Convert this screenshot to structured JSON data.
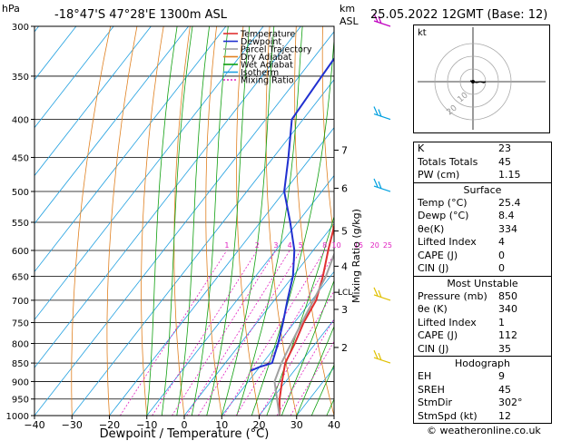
{
  "header": {
    "hpa_label": "hPa",
    "location": "-18°47'S  47°28'E  1300m  ASL",
    "km_label": "km",
    "asl_label": "ASL",
    "date": "25.05.2022  12GMT  (Base: 12)"
  },
  "chart_data": {
    "type": "line",
    "x_axis_title": "Dewpoint / Temperature (°C)",
    "y_axis_title": "hPa",
    "secondary_axis_title": "Mixing Ratio (g/kg)",
    "xlim": [
      -40,
      40
    ],
    "ylim": [
      1000,
      300
    ],
    "x_ticks": [
      -40,
      -30,
      -20,
      -10,
      0,
      10,
      20,
      30,
      40
    ],
    "x_tick_labels": [
      "−40",
      "−30",
      "−20",
      "−10",
      "0",
      "10",
      "20",
      "30",
      "40"
    ],
    "pressure_levels": [
      300,
      350,
      400,
      450,
      500,
      550,
      600,
      650,
      700,
      750,
      800,
      850,
      900,
      950,
      1000
    ],
    "km_ticks": [
      {
        "km": "7",
        "p": 440
      },
      {
        "km": "6",
        "p": 495
      },
      {
        "km": "5",
        "p": 565
      },
      {
        "km": "4",
        "p": 630
      },
      {
        "km": "3",
        "p": 720
      },
      {
        "km": "2",
        "p": 810
      }
    ],
    "lcl_label": "LCL",
    "lcl_pressure": 683,
    "mixing_ratio_labels": [
      "1",
      "2",
      "3",
      "4",
      "5",
      "8",
      "10",
      "15",
      "20",
      "25"
    ],
    "mixing_ratio_values": [
      1,
      2,
      3,
      4,
      5,
      8,
      10,
      15,
      20,
      25
    ],
    "legend": [
      {
        "name": "Temperature",
        "color": "#e03030"
      },
      {
        "name": "Dewpoint",
        "color": "#2030d0"
      },
      {
        "name": "Parcel Trajectory",
        "color": "#a0a0a0"
      },
      {
        "name": "Dry Adiabat",
        "color": "#e08020"
      },
      {
        "name": "Wet Adiabat",
        "color": "#10a010"
      },
      {
        "name": "Isotherm",
        "color": "#20a0e0"
      },
      {
        "name": "Mixing Ratio",
        "color": "#e020c0"
      }
    ],
    "series": [
      {
        "name": "Temperature",
        "color": "#e03030",
        "points": [
          [
            1000,
            25.4
          ],
          [
            950,
            22.0
          ],
          [
            900,
            19.0
          ],
          [
            850,
            16.0
          ],
          [
            800,
            14.5
          ],
          [
            750,
            12.5
          ],
          [
            700,
            11.2
          ],
          [
            650,
            8.0
          ],
          [
            600,
            4.0
          ],
          [
            550,
            0.0
          ],
          [
            500,
            -5.0
          ],
          [
            450,
            -10.0
          ],
          [
            400,
            -16.0
          ],
          [
            350,
            -24.0
          ],
          [
            300,
            -32.0
          ]
        ]
      },
      {
        "name": "Dewpoint",
        "color": "#2030d0",
        "points": [
          [
            870,
            8.4
          ],
          [
            860,
            10.0
          ],
          [
            850,
            12.5
          ],
          [
            800,
            10.0
          ],
          [
            750,
            7.0
          ],
          [
            700,
            3.5
          ],
          [
            650,
            0.0
          ],
          [
            600,
            -5.0
          ],
          [
            550,
            -12.0
          ],
          [
            500,
            -20.0
          ],
          [
            450,
            -26.0
          ],
          [
            400,
            -33.0
          ],
          [
            350,
            -34.0
          ],
          [
            300,
            -35.0
          ]
        ]
      },
      {
        "name": "Parcel Trajectory",
        "color": "#a0a0a0",
        "points": [
          [
            1000,
            25.4
          ],
          [
            900,
            17.0
          ],
          [
            850,
            15.0
          ],
          [
            800,
            13.5
          ],
          [
            750,
            12.0
          ],
          [
            700,
            10.5
          ],
          [
            650,
            8.8
          ],
          [
            600,
            6.0
          ],
          [
            550,
            2.0
          ],
          [
            500,
            -3.0
          ],
          [
            450,
            -9.0
          ],
          [
            400,
            -16.5
          ],
          [
            350,
            -25.0
          ],
          [
            300,
            -35.0
          ]
        ]
      }
    ],
    "wind_barbs_pressure": [
      300,
      400,
      500,
      700,
      850
    ]
  },
  "hodograph": {
    "kt_label": "kt",
    "ring_labels": [
      "10",
      "20"
    ]
  },
  "indices": [
    {
      "label": "K",
      "value": "23"
    },
    {
      "label": "Totals Totals",
      "value": "45"
    },
    {
      "label": "PW (cm)",
      "value": "1.15"
    }
  ],
  "surface": {
    "title": "Surface",
    "rows": [
      {
        "label": "Temp (°C)",
        "value": "25.4"
      },
      {
        "label": "Dewp (°C)",
        "value": "8.4"
      },
      {
        "label": "θe(K)",
        "value": "334"
      },
      {
        "label": "Lifted Index",
        "value": "4"
      },
      {
        "label": "CAPE (J)",
        "value": "0"
      },
      {
        "label": "CIN (J)",
        "value": "0"
      }
    ]
  },
  "most_unstable": {
    "title": "Most Unstable",
    "rows": [
      {
        "label": "Pressure (mb)",
        "value": "850"
      },
      {
        "label": "θe (K)",
        "value": "340"
      },
      {
        "label": "Lifted Index",
        "value": "1"
      },
      {
        "label": "CAPE (J)",
        "value": "112"
      },
      {
        "label": "CIN (J)",
        "value": "35"
      }
    ]
  },
  "hodograph_table": {
    "title": "Hodograph",
    "rows": [
      {
        "label": "EH",
        "value": "9"
      },
      {
        "label": "SREH",
        "value": "45"
      },
      {
        "label": "StmDir",
        "value": "302°"
      },
      {
        "label": "StmSpd (kt)",
        "value": "12"
      }
    ]
  },
  "copyright": "© weatheronline.co.uk"
}
